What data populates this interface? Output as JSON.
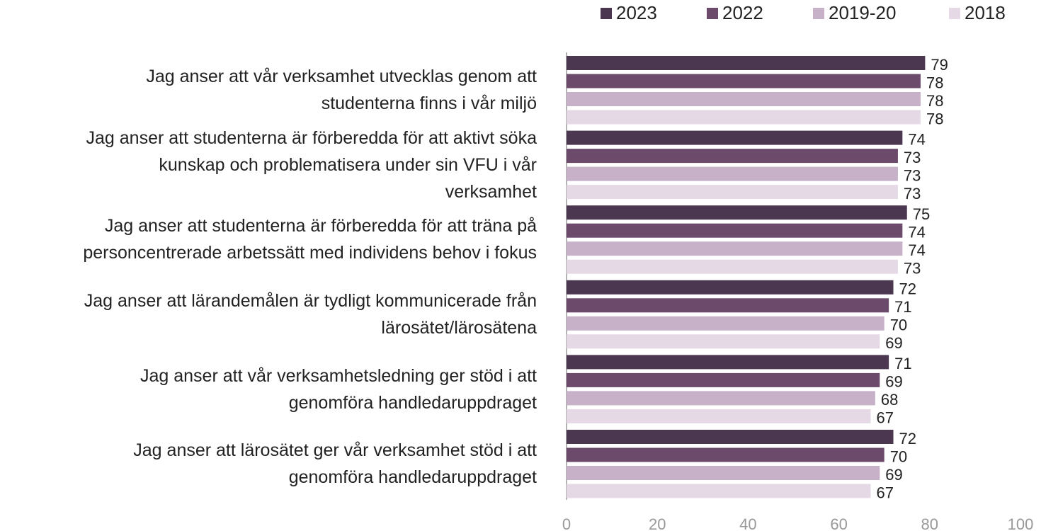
{
  "chart_data": {
    "type": "barh",
    "categories": [
      "Jag anser att vår verksamhet utvecklas genom att\nstudenterna finns i vår miljö",
      "Jag anser att studenterna är förberedda för att aktivt söka\nkunskap och problematisera under sin VFU i vår\nverksamhet",
      "Jag anser att studenterna är förberedda för att träna på\npersoncentrerade arbetssätt med individens behov i fokus",
      "Jag anser att lärandemålen är tydligt kommunicerade från\nlärosätet/lärosätena",
      "Jag anser att vår verksamhetsledning ger stöd i att\ngenomföra handledaruppdraget",
      "Jag anser att lärosätet ger vår verksamhet stöd i att\ngenomföra handledaruppdraget"
    ],
    "series": [
      {
        "name": "2023",
        "color": "#4b3750",
        "values": [
          79,
          74,
          75,
          72,
          71,
          72
        ]
      },
      {
        "name": "2022",
        "color": "#6b4a6b",
        "values": [
          78,
          73,
          74,
          71,
          69,
          70
        ]
      },
      {
        "name": "2019-20",
        "color": "#c6b1c9",
        "values": [
          78,
          73,
          74,
          70,
          68,
          69
        ]
      },
      {
        "name": "2018",
        "color": "#e4d9e5",
        "values": [
          78,
          73,
          73,
          69,
          67,
          67
        ]
      }
    ],
    "xlim": [
      0,
      100
    ],
    "xticks": [
      0,
      20,
      40,
      60,
      80,
      100
    ],
    "legend": "top"
  }
}
